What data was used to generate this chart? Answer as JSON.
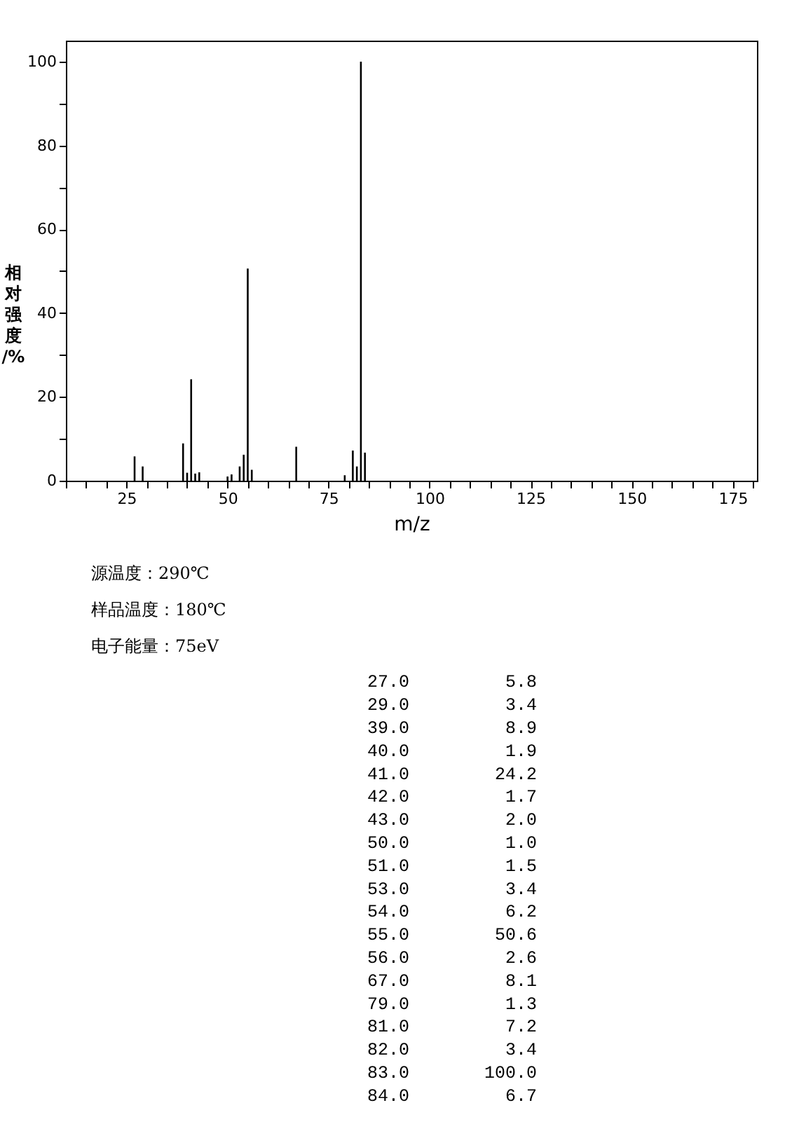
{
  "chart_data": [
    {
      "type": "bar",
      "xlabel": "m/z",
      "ylabel": "相对强度/%",
      "x": [
        27.0,
        29.0,
        39.0,
        40.0,
        41.0,
        42.0,
        43.0,
        50.0,
        51.0,
        53.0,
        54.0,
        55.0,
        56.0,
        67.0,
        79.0,
        81.0,
        82.0,
        83.0,
        84.0
      ],
      "values": [
        5.8,
        3.4,
        8.9,
        1.9,
        24.2,
        1.7,
        2.0,
        1.0,
        1.5,
        3.4,
        6.2,
        50.6,
        2.6,
        8.1,
        1.3,
        7.2,
        3.4,
        100.0,
        6.7
      ],
      "color": "#000000",
      "xlim": [
        10,
        181
      ],
      "xticks": [
        {
          "value": 10,
          "label": null
        },
        {
          "value": 15,
          "label": null
        },
        {
          "value": 20,
          "label": null
        },
        25,
        {
          "value": 30,
          "label": null
        },
        {
          "value": 35,
          "label": null
        },
        {
          "value": 40,
          "label": null
        },
        {
          "value": 45,
          "label": null
        },
        50,
        {
          "value": 55,
          "label": null
        },
        {
          "value": 60,
          "label": null
        },
        {
          "value": 65,
          "label": null
        },
        {
          "value": 70,
          "label": null
        },
        75,
        {
          "value": 80,
          "label": null
        },
        {
          "value": 85,
          "label": null
        },
        {
          "value": 90,
          "label": null
        },
        {
          "value": 95,
          "label": null
        },
        100,
        {
          "value": 105,
          "label": null
        },
        {
          "value": 110,
          "label": null
        },
        {
          "value": 115,
          "label": null
        },
        {
          "value": 120,
          "label": null
        },
        125,
        {
          "value": 130,
          "label": null
        },
        {
          "value": 135,
          "label": null
        },
        {
          "value": 140,
          "label": null
        },
        {
          "value": 145,
          "label": null
        },
        150,
        {
          "value": 155,
          "label": null
        },
        {
          "value": 160,
          "label": null
        },
        {
          "value": 165,
          "label": null
        },
        {
          "value": 170,
          "label": null
        },
        175,
        {
          "value": 180,
          "label": null
        }
      ],
      "ylim": [
        0,
        105
      ],
      "yticks": [
        0,
        {
          "value": 10,
          "label": null
        },
        20,
        {
          "value": 30,
          "label": null
        },
        40,
        {
          "value": 50,
          "label": null
        },
        60,
        {
          "value": 70,
          "label": null
        },
        80,
        {
          "value": 90,
          "label": null
        },
        100
      ],
      "grid": false,
      "annotations": [
        "源温度：290℃",
        "样品温度：180℃",
        "电子能量：75eV"
      ]
    },
    {
      "type": "other",
      "annotations": [
        "27.0",
        "5.8",
        "29.0",
        "3.4",
        "39.0",
        "8.9",
        "40.0",
        "1.9",
        "41.0",
        "24.2",
        "42.0",
        "1.7",
        "43.0",
        "2.0",
        "50.0",
        "1.0",
        "51.0",
        "1.5",
        "53.0",
        "3.4",
        "54.0",
        "6.2",
        "55.0",
        "50.6",
        "56.0",
        "2.6",
        "67.0",
        "8.1",
        "79.0",
        "1.3",
        "81.0",
        "7.2",
        "82.0",
        "3.4",
        "83.0",
        "100.0",
        "84.0",
        "6.7"
      ]
    }
  ]
}
